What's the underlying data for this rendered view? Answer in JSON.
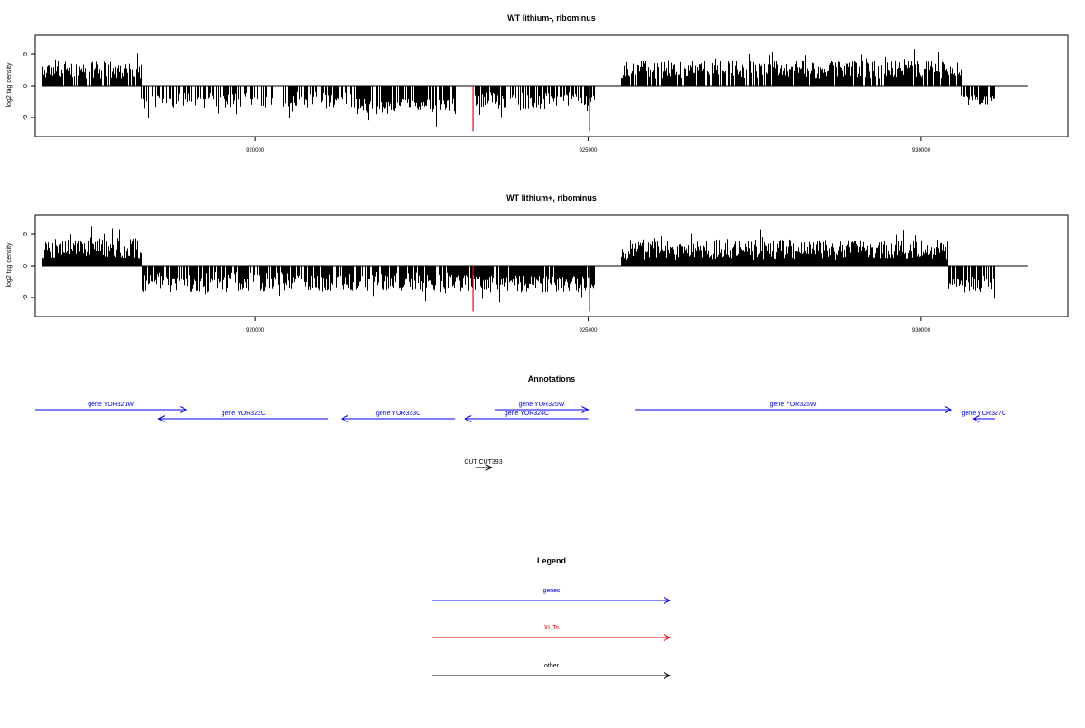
{
  "chart_data": [
    {
      "type": "bar",
      "title": "WT lithium-, ribominus",
      "ylabel": "log2 tag density",
      "xlabel": "",
      "xlim": [
        916700,
        932200
      ],
      "ylim": [
        -8,
        8
      ],
      "x_ticks": [
        920000,
        925000,
        930000
      ],
      "x_tick_labels": [
        "920000",
        "925000",
        "930000"
      ],
      "y_ticks": [
        -5,
        0,
        5
      ],
      "y_tick_labels": [
        "-5",
        "0",
        "5"
      ],
      "baseline": {
        "from": 916800,
        "to": 931600,
        "value": 0
      },
      "series_color": "#000000",
      "segments": [
        {
          "from": 916800,
          "to": 918300,
          "mean": 2.5,
          "amp": 1.3,
          "dens": 0.9
        },
        {
          "from": 918300,
          "to": 921500,
          "mean": -2.2,
          "amp": 1.3,
          "dens": 0.55
        },
        {
          "from": 921500,
          "to": 923000,
          "mean": -3.2,
          "amp": 1.3,
          "dens": 0.8
        },
        {
          "from": 923300,
          "to": 925100,
          "mean": -2.3,
          "amp": 1.3,
          "dens": 0.65
        },
        {
          "from": 925500,
          "to": 930600,
          "mean": 2.6,
          "amp": 1.4,
          "dens": 0.85
        },
        {
          "from": 930600,
          "to": 931100,
          "mean": -2.2,
          "amp": 0.8,
          "dens": 0.75
        }
      ],
      "highlight_bars": [
        {
          "x": 923270,
          "value": -7.2,
          "color": "#ff0000"
        },
        {
          "x": 925020,
          "value": -7.2,
          "color": "#ff0000"
        }
      ]
    },
    {
      "type": "bar",
      "title": "WT lithium+, ribominus",
      "ylabel": "log2 tag density",
      "xlabel": "",
      "xlim": [
        916700,
        932200
      ],
      "ylim": [
        -8,
        8
      ],
      "x_ticks": [
        920000,
        925000,
        930000
      ],
      "x_tick_labels": [
        "920000",
        "925000",
        "930000"
      ],
      "y_ticks": [
        -5,
        0,
        5
      ],
      "y_tick_labels": [
        "-5",
        "0",
        "5"
      ],
      "baseline": {
        "from": 916800,
        "to": 931600,
        "value": 0
      },
      "series_color": "#000000",
      "segments": [
        {
          "from": 916800,
          "to": 918300,
          "mean": 2.8,
          "amp": 1.6,
          "dens": 1.0
        },
        {
          "from": 918300,
          "to": 923000,
          "mean": -2.6,
          "amp": 1.6,
          "dens": 0.8
        },
        {
          "from": 923000,
          "to": 925100,
          "mean": -2.8,
          "amp": 1.4,
          "dens": 0.95
        },
        {
          "from": 925500,
          "to": 930400,
          "mean": 2.6,
          "amp": 1.6,
          "dens": 1.0
        },
        {
          "from": 930400,
          "to": 931100,
          "mean": -2.7,
          "amp": 1.3,
          "dens": 0.85
        }
      ],
      "highlight_bars": [
        {
          "x": 923270,
          "value": -7.2,
          "color": "#ff0000"
        },
        {
          "x": 925020,
          "value": -7.2,
          "color": "#ff0000"
        }
      ]
    }
  ],
  "annotations": {
    "title": "Annotations",
    "genes_color": "#0000ff",
    "other_color": "#000000",
    "items": [
      {
        "label": "gene YOR321W",
        "from": 916700,
        "to": 918970,
        "row": 1,
        "kind": "gene"
      },
      {
        "label": "gene YOR322C",
        "from": 921100,
        "to": 918550,
        "row": 2,
        "kind": "gene"
      },
      {
        "label": "gene YOR323C",
        "from": 923000,
        "to": 921300,
        "row": 2,
        "kind": "gene"
      },
      {
        "label": "gene YOR325W",
        "from": 923600,
        "to": 925000,
        "row": 1,
        "kind": "gene"
      },
      {
        "label": "gene YOR324C",
        "from": 925000,
        "to": 923150,
        "row": 2,
        "kind": "gene"
      },
      {
        "label": "gene YOR326W",
        "from": 925700,
        "to": 930450,
        "row": 1,
        "kind": "gene"
      },
      {
        "label": "gene YOR327C",
        "from": 931100,
        "to": 930780,
        "row": 2,
        "kind": "gene"
      },
      {
        "label": "CUT CUT393",
        "from": 923300,
        "to": 923550,
        "row": 3,
        "kind": "other"
      }
    ]
  },
  "legend": {
    "title": "Legend",
    "items": [
      {
        "label": "genes",
        "color": "#0000ff"
      },
      {
        "label": "XUTs",
        "color": "#ff0000"
      },
      {
        "label": "other",
        "color": "#000000"
      }
    ]
  }
}
